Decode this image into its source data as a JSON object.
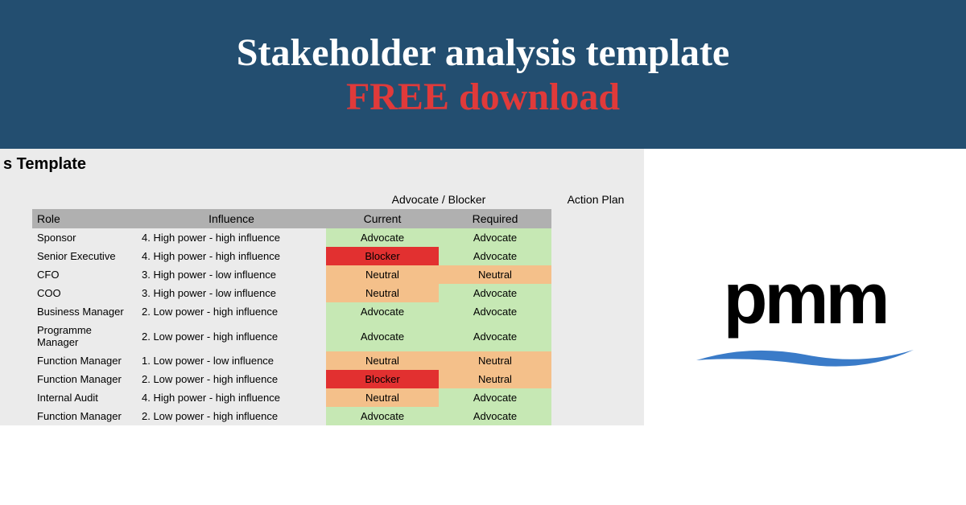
{
  "banner": {
    "title": "Stakeholder analysis template",
    "subtitle": "FREE download",
    "bg_color": "#234e70",
    "title_color": "#ffffff",
    "subtitle_color": "#e03a3a",
    "fontsize": 48
  },
  "corner_label": "s Template",
  "table": {
    "super_headers": {
      "advocate_blocker": "Advocate / Blocker",
      "action_plan": "Action Plan"
    },
    "columns": {
      "role": "Role",
      "influence": "Influence",
      "current": "Current",
      "required": "Required"
    },
    "header_bg": "#b0b0b0",
    "colors": {
      "green": "#c6e8b4",
      "orange": "#f4c08a",
      "red": "#e23030",
      "gray_bg": "#ebebeb"
    },
    "rows": [
      {
        "role": "Sponsor",
        "influence": "4. High power - high influence",
        "current": "Advocate",
        "current_bg": "green",
        "required": "Advocate",
        "required_bg": "green"
      },
      {
        "role": "Senior Executive",
        "influence": "4. High power - high influence",
        "current": "Blocker",
        "current_bg": "red",
        "required": "Advocate",
        "required_bg": "green"
      },
      {
        "role": "CFO",
        "influence": "3. High power - low influence",
        "current": "Neutral",
        "current_bg": "orange",
        "required": "Neutral",
        "required_bg": "orange"
      },
      {
        "role": "COO",
        "influence": "3. High power - low influence",
        "current": "Neutral",
        "current_bg": "orange",
        "required": "Advocate",
        "required_bg": "green"
      },
      {
        "role": "Business Manager",
        "influence": "2. Low power - high influence",
        "current": "Advocate",
        "current_bg": "green",
        "required": "Advocate",
        "required_bg": "green"
      },
      {
        "role": "Programme Manager",
        "influence": "2. Low power - high influence",
        "current": "Advocate",
        "current_bg": "green",
        "required": "Advocate",
        "required_bg": "green"
      },
      {
        "role": "Function Manager",
        "influence": "1. Low power - low influence",
        "current": "Neutral",
        "current_bg": "orange",
        "required": "Neutral",
        "required_bg": "orange"
      },
      {
        "role": "Function Manager",
        "influence": "2. Low power - high influence",
        "current": "Blocker",
        "current_bg": "red",
        "required": "Neutral",
        "required_bg": "orange"
      },
      {
        "role": "Internal Audit",
        "influence": "4. High power - high influence",
        "current": "Neutral",
        "current_bg": "orange",
        "required": "Advocate",
        "required_bg": "green"
      },
      {
        "role": "Function Manager",
        "influence": "2. Low power - high influence",
        "current": "Advocate",
        "current_bg": "green",
        "required": "Advocate",
        "required_bg": "green"
      }
    ]
  },
  "logo": {
    "text": "pmm",
    "text_color": "#000000",
    "wave_color": "#3a7bc8",
    "fontsize": 90
  }
}
